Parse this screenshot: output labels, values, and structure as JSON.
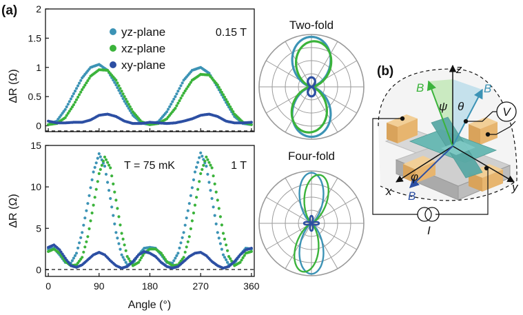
{
  "figure": {
    "panel_a_label": "(a)",
    "panel_b_label": "(b)"
  },
  "chart_data": [
    {
      "type": "scatter",
      "panel": "top",
      "field_label": "0.15 T",
      "ylabel": "ΔR (Ω)",
      "xlim": [
        -5,
        365
      ],
      "ylim": [
        -0.1,
        2.0
      ],
      "xticks": [
        0,
        90,
        180,
        270,
        360
      ],
      "yticks": [
        0,
        0.5,
        1,
        1.5,
        2
      ],
      "ytick_labels": [
        "0",
        "0.5",
        "1",
        "1.5",
        "2"
      ],
      "reference_line_y": 0,
      "series": [
        {
          "name": "yz-plane",
          "color": "#3c93b5",
          "x": [
            0,
            15,
            30,
            45,
            60,
            75,
            90,
            105,
            120,
            135,
            150,
            165,
            180,
            195,
            210,
            225,
            240,
            255,
            270,
            285,
            300,
            315,
            330,
            345,
            360
          ],
          "y": [
            0.02,
            0.08,
            0.28,
            0.55,
            0.82,
            1.0,
            1.05,
            0.95,
            0.7,
            0.42,
            0.18,
            0.05,
            0.02,
            0.07,
            0.24,
            0.5,
            0.78,
            0.95,
            1.0,
            0.9,
            0.66,
            0.4,
            0.16,
            0.04,
            0.02
          ]
        },
        {
          "name": "xz-plane",
          "color": "#3bb33b",
          "x": [
            0,
            15,
            30,
            45,
            60,
            75,
            90,
            105,
            120,
            135,
            150,
            165,
            180,
            195,
            210,
            225,
            240,
            255,
            270,
            285,
            300,
            315,
            330,
            345,
            360
          ],
          "y": [
            0.02,
            0.04,
            0.14,
            0.36,
            0.62,
            0.85,
            0.96,
            0.95,
            0.78,
            0.5,
            0.24,
            0.07,
            0.02,
            0.04,
            0.12,
            0.3,
            0.56,
            0.78,
            0.88,
            0.87,
            0.7,
            0.45,
            0.2,
            0.06,
            0.02
          ]
        },
        {
          "name": "xy-plane",
          "color": "#2c4fa3",
          "x": [
            0,
            15,
            30,
            45,
            60,
            75,
            90,
            105,
            120,
            135,
            150,
            165,
            180,
            195,
            210,
            225,
            240,
            255,
            270,
            285,
            300,
            315,
            330,
            345,
            360
          ],
          "y": [
            0.08,
            0.05,
            0.05,
            0.06,
            0.06,
            0.1,
            0.18,
            0.2,
            0.16,
            0.08,
            0.04,
            0.04,
            0.06,
            0.05,
            0.04,
            0.05,
            0.08,
            0.12,
            0.18,
            0.2,
            0.16,
            0.08,
            0.05,
            0.05,
            0.06
          ]
        }
      ]
    },
    {
      "type": "scatter",
      "panel": "bottom",
      "field_label": "1 T",
      "temperature_label": "T = 75 mK",
      "ylabel": "ΔR (Ω)",
      "xlabel": "Angle (°)",
      "xlim": [
        -5,
        365
      ],
      "ylim": [
        -0.8,
        15
      ],
      "xticks": [
        0,
        90,
        180,
        270,
        360
      ],
      "xtick_labels": [
        "0",
        "90",
        "180",
        "270",
        "360"
      ],
      "yticks": [
        0,
        5,
        10,
        15
      ],
      "ytick_labels": [
        "0",
        "5",
        "10",
        "15"
      ],
      "reference_line_y": 0,
      "series": [
        {
          "name": "yz-plane",
          "color": "#3c93b5",
          "x": [
            0,
            10,
            20,
            30,
            40,
            50,
            60,
            70,
            80,
            90,
            100,
            110,
            120,
            130,
            140,
            150,
            160,
            170,
            180,
            190,
            200,
            210,
            220,
            230,
            240,
            250,
            260,
            270,
            280,
            290,
            300,
            310,
            320,
            330,
            340,
            350,
            360
          ],
          "y": [
            2.5,
            2.6,
            1.8,
            0.9,
            0.8,
            2.0,
            4.5,
            8.0,
            11.8,
            14.0,
            12.5,
            8.6,
            4.5,
            1.8,
            0.6,
            0.8,
            1.8,
            2.6,
            2.7,
            2.6,
            1.8,
            0.9,
            0.8,
            2.0,
            4.5,
            8.0,
            11.8,
            14.1,
            12.5,
            8.6,
            4.5,
            1.8,
            0.6,
            0.8,
            1.8,
            2.6,
            2.5
          ]
        },
        {
          "name": "xz-plane",
          "color": "#3bb33b",
          "x": [
            0,
            10,
            20,
            30,
            40,
            50,
            60,
            70,
            80,
            90,
            100,
            110,
            120,
            130,
            140,
            150,
            160,
            170,
            180,
            190,
            200,
            210,
            220,
            230,
            240,
            250,
            260,
            270,
            280,
            290,
            300,
            310,
            320,
            330,
            340,
            350,
            360
          ],
          "y": [
            2.2,
            2.5,
            2.0,
            1.0,
            0.5,
            0.6,
            1.5,
            4.0,
            7.8,
            11.6,
            13.6,
            12.3,
            8.4,
            4.4,
            1.6,
            0.5,
            0.9,
            2.0,
            2.5,
            2.5,
            2.0,
            1.0,
            0.5,
            0.6,
            1.5,
            4.0,
            7.8,
            11.6,
            13.6,
            12.3,
            8.4,
            4.4,
            1.6,
            0.5,
            0.9,
            2.0,
            2.2
          ]
        },
        {
          "name": "xy-plane",
          "color": "#2c4fa3",
          "x": [
            0,
            10,
            20,
            30,
            40,
            50,
            60,
            70,
            80,
            90,
            100,
            110,
            120,
            130,
            140,
            150,
            160,
            170,
            180,
            190,
            200,
            210,
            220,
            230,
            240,
            250,
            260,
            270,
            280,
            290,
            300,
            310,
            320,
            330,
            340,
            350,
            360
          ],
          "y": [
            2.7,
            3.0,
            2.4,
            1.4,
            0.5,
            0.3,
            0.6,
            1.2,
            1.8,
            2.1,
            1.8,
            1.1,
            0.5,
            0.2,
            0.4,
            1.0,
            1.8,
            2.2,
            2.0,
            1.6,
            0.9,
            0.4,
            0.2,
            0.4,
            1.0,
            1.6,
            2.0,
            2.1,
            1.7,
            1.0,
            0.5,
            0.2,
            0.4,
            1.0,
            1.8,
            2.4,
            2.6
          ]
        }
      ]
    },
    {
      "type": "polar",
      "title": "Two-fold",
      "rmax": 1.1,
      "series": [
        {
          "name": "yz-plane",
          "color": "#3c93b5",
          "amplitude": 1.05,
          "fold": 2,
          "phase_deg": 0
        },
        {
          "name": "xz-plane",
          "color": "#3bb33b",
          "amplitude": 0.96,
          "fold": 2,
          "phase_deg": 5
        },
        {
          "name": "xy-plane",
          "color": "#2c4fa3",
          "amplitude": 0.2,
          "fold": 2,
          "phase_deg": 0
        }
      ]
    },
    {
      "type": "polar",
      "title": "Four-fold",
      "rmax": 14.5,
      "series": [
        {
          "name": "yz-plane",
          "color": "#3c93b5",
          "amplitude": 14.0,
          "fold": 2,
          "sharpness": 6,
          "tilt_deg": 0
        },
        {
          "name": "xz-plane",
          "color": "#3bb33b",
          "amplitude": 13.6,
          "fold": 2,
          "sharpness": 6,
          "tilt_deg": 10
        },
        {
          "name": "xy-plane",
          "color": "#2c4fa3",
          "amplitude": 2.1,
          "fold": 4,
          "sharpness": 2,
          "tilt_deg": 0
        }
      ]
    }
  ],
  "diagram": {
    "axis_z": "z",
    "axis_x": "x",
    "axis_y": "y",
    "field_B": "B",
    "angle_psi": "ψ",
    "angle_theta": "θ",
    "angle_phi": "φ",
    "voltmeter": "V",
    "current": "I",
    "colors": {
      "green": "#3bb33b",
      "teal": "#3c93b5",
      "blue": "#2c4fa3",
      "gold": "#e7b56f",
      "device": "#5aa9a5"
    }
  }
}
